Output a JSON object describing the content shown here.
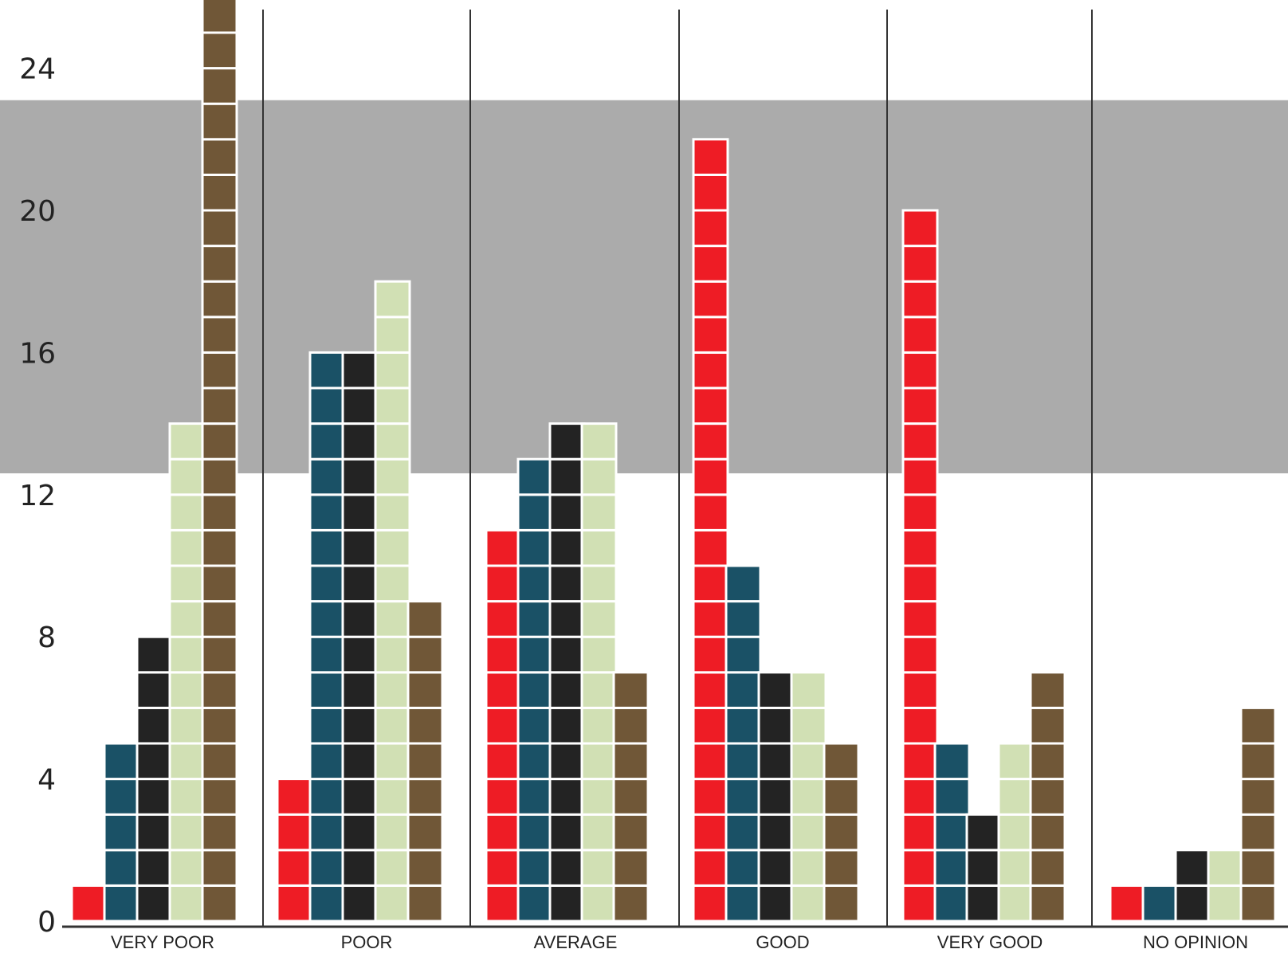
{
  "chart_data": {
    "type": "bar",
    "subtype": "stacked-unit-blocks",
    "title": "",
    "xlabel": "",
    "ylabel": "",
    "categories": [
      "VERY POOR",
      "POOR",
      "AVERAGE",
      "GOOD",
      "VERY GOOD",
      "NO OPINION"
    ],
    "y_ticks": [
      "0",
      "4",
      "8",
      "12",
      "16",
      "20",
      "24"
    ],
    "ylim": [
      0,
      25
    ],
    "highlight_band": [
      12.6,
      23.1
    ],
    "grid": false,
    "legend": "none",
    "series": [
      {
        "color": "#ee1c25",
        "values": [
          1,
          4,
          11,
          22,
          20,
          1
        ]
      },
      {
        "color": "#1a5166",
        "values": [
          5,
          16,
          13,
          10,
          5,
          1
        ]
      },
      {
        "color": "#232323",
        "values": [
          8,
          16,
          14,
          7,
          3,
          2
        ]
      },
      {
        "color": "#d1e0b4",
        "values": [
          14,
          18,
          14,
          7,
          5,
          2
        ]
      },
      {
        "color": "#705737",
        "values": [
          26,
          9,
          7,
          5,
          7,
          6
        ]
      }
    ],
    "colors": {
      "band": "#ababab",
      "axis": "#333333",
      "block_border": "#ffffff"
    }
  }
}
